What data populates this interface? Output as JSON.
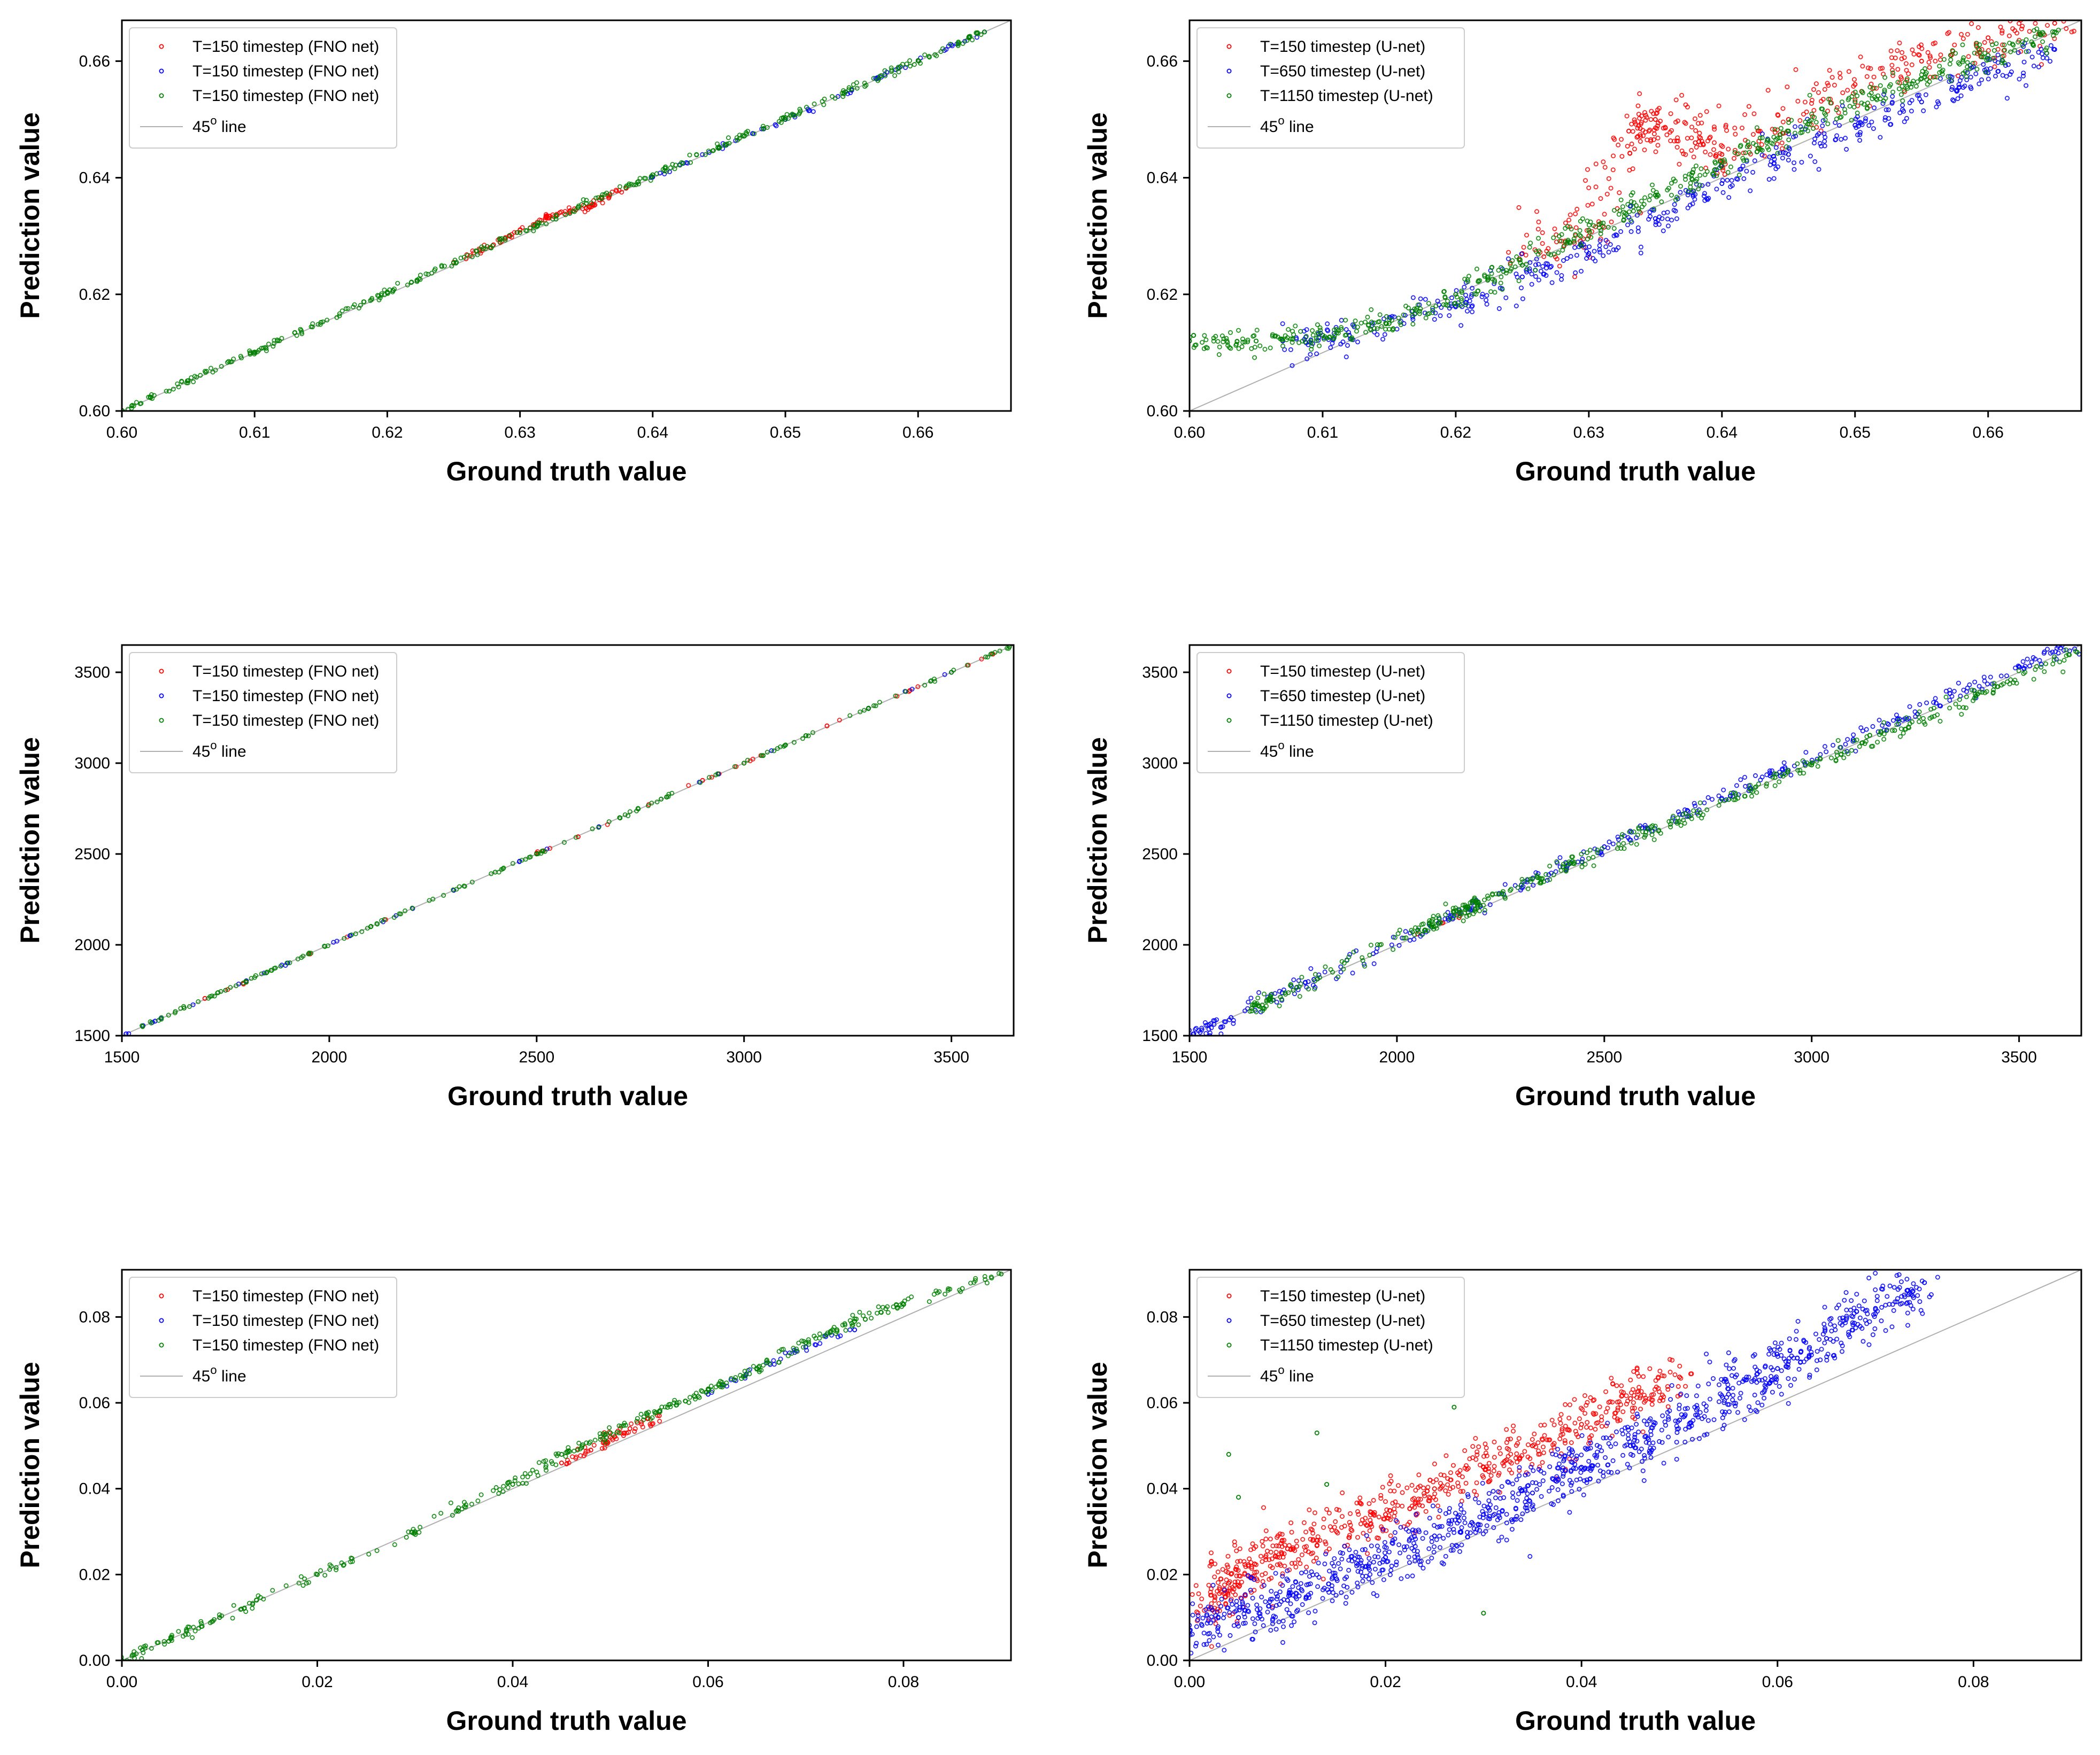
{
  "chart_data": [
    {
      "type": "scatter",
      "panel": "top-left",
      "xlabel": "Ground truth value",
      "ylabel": "Prediction value",
      "xlim": [
        0.6,
        0.667
      ],
      "ylim": [
        0.6,
        0.667
      ],
      "xticks": [
        "0.60",
        "0.61",
        "0.62",
        "0.63",
        "0.64",
        "0.65",
        "0.66"
      ],
      "xtick_values": [
        0.6,
        0.61,
        0.62,
        0.63,
        0.64,
        0.65,
        0.66
      ],
      "yticks": [
        "0.60",
        "0.62",
        "0.64",
        "0.66"
      ],
      "ytick_values": [
        0.6,
        0.62,
        0.64,
        0.66
      ],
      "legend_position": "top-left",
      "series": [
        {
          "name": "T=150 timestep (FNO net)",
          "color": "#ff0000",
          "x": [
            0.625,
            0.628,
            0.63,
            0.632,
            0.633,
            0.635,
            0.636,
            0.638
          ],
          "y": [
            0.6255,
            0.6285,
            0.631,
            0.6332,
            0.634,
            0.6348,
            0.6362,
            0.6382
          ]
        },
        {
          "name": "T=150 timestep (FNO net)",
          "color": "#0000ff",
          "x": [
            0.64,
            0.645,
            0.65,
            0.655,
            0.66,
            0.665
          ],
          "y": [
            0.6401,
            0.6451,
            0.65,
            0.655,
            0.6601,
            0.665
          ]
        },
        {
          "name": "T=150 timestep (FNO net)",
          "color": "#008000",
          "x": [
            0.6,
            0.605,
            0.61,
            0.615,
            0.62,
            0.625,
            0.63,
            0.635,
            0.64,
            0.645,
            0.65,
            0.655,
            0.66,
            0.665
          ],
          "y": [
            0.6001,
            0.6052,
            0.6101,
            0.6152,
            0.6203,
            0.6254,
            0.6306,
            0.6356,
            0.6405,
            0.6453,
            0.6503,
            0.6552,
            0.6601,
            0.665
          ]
        }
      ],
      "reference_line": {
        "name": "45° line",
        "color": "#b0b0b0"
      }
    },
    {
      "type": "scatter",
      "panel": "top-right",
      "xlabel": "Ground truth value",
      "ylabel": "Prediction value",
      "xlim": [
        0.6,
        0.667
      ],
      "ylim": [
        0.6,
        0.667
      ],
      "xticks": [
        "0.60",
        "0.61",
        "0.62",
        "0.63",
        "0.64",
        "0.65",
        "0.66"
      ],
      "xtick_values": [
        0.6,
        0.61,
        0.62,
        0.63,
        0.64,
        0.65,
        0.66
      ],
      "yticks": [
        "0.60",
        "0.62",
        "0.64",
        "0.66"
      ],
      "ytick_values": [
        0.6,
        0.62,
        0.64,
        0.66
      ],
      "legend_position": "top-left",
      "series": [
        {
          "name": "T=150 timestep (U-net)",
          "color": "#ff0000",
          "x": [
            0.625,
            0.63,
            0.633,
            0.635,
            0.638,
            0.64,
            0.645,
            0.65,
            0.655,
            0.66,
            0.665
          ],
          "y": [
            0.627,
            0.63,
            0.648,
            0.65,
            0.646,
            0.644,
            0.65,
            0.656,
            0.66,
            0.664,
            0.6665
          ]
        },
        {
          "name": "T=650 timestep (U-net)",
          "color": "#0000ff",
          "x": [
            0.607,
            0.612,
            0.62,
            0.625,
            0.63,
            0.635,
            0.64,
            0.645,
            0.65,
            0.655,
            0.66,
            0.665
          ],
          "y": [
            0.612,
            0.613,
            0.618,
            0.623,
            0.627,
            0.633,
            0.639,
            0.644,
            0.649,
            0.653,
            0.658,
            0.662
          ]
        },
        {
          "name": "T=1150 timestep (U-net)",
          "color": "#008000",
          "x": [
            0.6,
            0.605,
            0.61,
            0.615,
            0.62,
            0.625,
            0.63,
            0.635,
            0.64,
            0.645,
            0.65,
            0.655,
            0.66,
            0.665
          ],
          "y": [
            0.612,
            0.612,
            0.613,
            0.615,
            0.62,
            0.625,
            0.631,
            0.637,
            0.642,
            0.648,
            0.653,
            0.657,
            0.661,
            0.665
          ]
        }
      ],
      "reference_line": {
        "name": "45° line",
        "color": "#b0b0b0"
      }
    },
    {
      "type": "scatter",
      "panel": "middle-left",
      "xlabel": "Ground truth value",
      "ylabel": "Prediction value",
      "xlim": [
        1500,
        3650
      ],
      "ylim": [
        1500,
        3650
      ],
      "xticks": [
        "1500",
        "2000",
        "2500",
        "3000",
        "3500"
      ],
      "xtick_values": [
        1500,
        2000,
        2500,
        3000,
        3500
      ],
      "yticks": [
        "1500",
        "2000",
        "2500",
        "3000",
        "3500"
      ],
      "ytick_values": [
        1500,
        2000,
        2500,
        3000,
        3500
      ],
      "legend_position": "top-left",
      "series": [
        {
          "name": "T=150 timestep (FNO net)",
          "color": "#ff0000",
          "x": [
            1700,
            1800,
            2500,
            2600,
            2900,
            3000,
            3200,
            3400,
            3600
          ],
          "y": [
            1705,
            1795,
            2505,
            2595,
            2905,
            3000,
            3205,
            3400,
            3600
          ]
        },
        {
          "name": "T=150 timestep (FNO net)",
          "color": "#0000ff",
          "x": [
            1510,
            1580,
            1800,
            1900,
            2050,
            2300,
            2650,
            3300,
            3500
          ],
          "y": [
            1510,
            1580,
            1802,
            1900,
            2050,
            2300,
            2650,
            3302,
            3500
          ]
        },
        {
          "name": "T=150 timestep (FNO net)",
          "color": "#008000",
          "x": [
            1550,
            1650,
            1750,
            1850,
            1950,
            2100,
            2200,
            2400,
            2500,
            2700,
            2800,
            3000,
            3100,
            3300,
            3500,
            3640
          ],
          "y": [
            1550,
            1652,
            1750,
            1850,
            1950,
            2100,
            2202,
            2400,
            2500,
            2700,
            2802,
            3000,
            3100,
            3300,
            3500,
            3640
          ]
        }
      ],
      "reference_line": {
        "name": "45° line",
        "color": "#b0b0b0"
      }
    },
    {
      "type": "scatter",
      "panel": "middle-right",
      "xlabel": "Ground truth value",
      "ylabel": "Prediction value",
      "xlim": [
        1500,
        3650
      ],
      "ylim": [
        1500,
        3650
      ],
      "xticks": [
        "1500",
        "2000",
        "2500",
        "3000",
        "3500"
      ],
      "xtick_values": [
        1500,
        2000,
        2500,
        3000,
        3500
      ],
      "yticks": [
        "1500",
        "2000",
        "2500",
        "3000",
        "3500"
      ],
      "ytick_values": [
        1500,
        2000,
        2500,
        3000,
        3500
      ],
      "legend_position": "top-left",
      "series": [
        {
          "name": "T=150 timestep (U-net)",
          "color": "#ff0000",
          "x": [
            2050,
            2150
          ],
          "y": [
            2060,
            2150
          ]
        },
        {
          "name": "T=650 timestep (U-net)",
          "color": "#0000ff",
          "x": [
            1510,
            1600,
            1800,
            2100,
            2300,
            2500,
            2700,
            2900,
            3100,
            3300,
            3500,
            3640
          ],
          "y": [
            1510,
            1600,
            1810,
            2120,
            2330,
            2540,
            2740,
            2930,
            3130,
            3330,
            3530,
            3660
          ]
        },
        {
          "name": "T=1150 timestep (U-net)",
          "color": "#008000",
          "x": [
            1650,
            1750,
            2050,
            2150,
            2200,
            2400,
            2600,
            2800,
            3000,
            3200,
            3400,
            3640
          ],
          "y": [
            1650,
            1750,
            2080,
            2180,
            2220,
            2430,
            2620,
            2800,
            2990,
            3180,
            3380,
            3610
          ]
        }
      ],
      "reference_line": {
        "name": "45° line",
        "color": "#b0b0b0"
      }
    },
    {
      "type": "scatter",
      "panel": "bottom-left",
      "xlabel": "Ground truth value",
      "ylabel": "Prediction value",
      "xlim": [
        0.0,
        0.091
      ],
      "ylim": [
        0.0,
        0.091
      ],
      "xticks": [
        "0.00",
        "0.02",
        "0.04",
        "0.06",
        "0.08"
      ],
      "xtick_values": [
        0.0,
        0.02,
        0.04,
        0.06,
        0.08
      ],
      "yticks": [
        "0.00",
        "0.02",
        "0.04",
        "0.06",
        "0.08"
      ],
      "ytick_values": [
        0.0,
        0.02,
        0.04,
        0.06,
        0.08
      ],
      "legend_position": "top-left",
      "series": [
        {
          "name": "T=150 timestep (FNO net)",
          "color": "#ff0000",
          "x": [
            0.045,
            0.048,
            0.05,
            0.052,
            0.055
          ],
          "y": [
            0.046,
            0.049,
            0.052,
            0.054,
            0.057
          ]
        },
        {
          "name": "T=150 timestep (FNO net)",
          "color": "#0000ff",
          "x": [
            0.06,
            0.065,
            0.07,
            0.075
          ],
          "y": [
            0.062,
            0.068,
            0.073,
            0.077
          ]
        },
        {
          "name": "T=150 timestep (FNO net)",
          "color": "#008000",
          "x": [
            0.0,
            0.005,
            0.01,
            0.02,
            0.03,
            0.04,
            0.045,
            0.05,
            0.055,
            0.06,
            0.065,
            0.07,
            0.075,
            0.08,
            0.09
          ],
          "y": [
            0.0,
            0.005,
            0.01,
            0.02,
            0.03,
            0.041,
            0.048,
            0.053,
            0.058,
            0.063,
            0.068,
            0.074,
            0.079,
            0.083,
            0.09
          ]
        }
      ],
      "reference_line": {
        "name": "45° line",
        "color": "#b0b0b0"
      }
    },
    {
      "type": "scatter",
      "panel": "bottom-right",
      "xlabel": "Ground truth value",
      "ylabel": "Prediction value",
      "xlim": [
        0.0,
        0.091
      ],
      "ylim": [
        0.0,
        0.091
      ],
      "xticks": [
        "0.00",
        "0.02",
        "0.04",
        "0.06",
        "0.08"
      ],
      "xtick_values": [
        0.0,
        0.02,
        0.04,
        0.06,
        0.08
      ],
      "yticks": [
        "0.00",
        "0.02",
        "0.04",
        "0.06",
        "0.08"
      ],
      "ytick_values": [
        0.0,
        0.02,
        0.04,
        0.06,
        0.08
      ],
      "legend_position": "top-left",
      "series": [
        {
          "name": "T=150 timestep (U-net)",
          "color": "#ff0000",
          "x": [
            0.002,
            0.004,
            0.006,
            0.01,
            0.015,
            0.02,
            0.025,
            0.03,
            0.035,
            0.04,
            0.045,
            0.05
          ],
          "y": [
            0.012,
            0.018,
            0.022,
            0.026,
            0.03,
            0.034,
            0.04,
            0.045,
            0.05,
            0.055,
            0.061,
            0.066
          ]
        },
        {
          "name": "T=650 timestep (U-net)",
          "color": "#0000ff",
          "x": [
            0.0,
            0.005,
            0.01,
            0.015,
            0.02,
            0.025,
            0.03,
            0.035,
            0.04,
            0.045,
            0.05,
            0.055,
            0.06,
            0.065,
            0.07,
            0.075
          ],
          "y": [
            0.007,
            0.01,
            0.014,
            0.019,
            0.024,
            0.029,
            0.034,
            0.039,
            0.045,
            0.05,
            0.056,
            0.062,
            0.068,
            0.075,
            0.082,
            0.088
          ]
        },
        {
          "name": "T=1150 timestep (U-net)",
          "color": "#008000",
          "x": [
            0.004,
            0.005,
            0.013,
            0.014,
            0.027,
            0.03
          ],
          "y": [
            0.048,
            0.038,
            0.053,
            0.041,
            0.059,
            0.011
          ]
        }
      ],
      "reference_line": {
        "name": "45° line",
        "color": "#b0b0b0"
      }
    }
  ]
}
